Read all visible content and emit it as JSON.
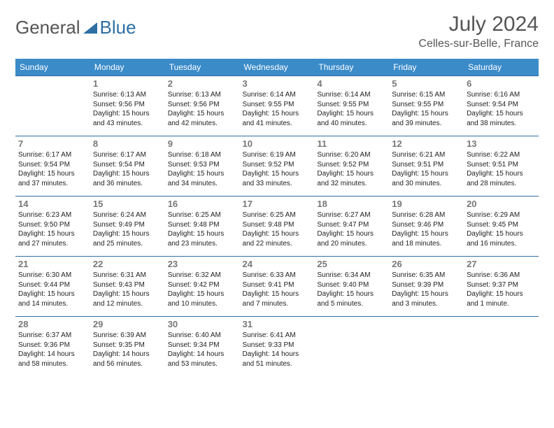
{
  "colors": {
    "header_bg": "#3b8bc9",
    "header_text": "#ffffff",
    "row_border": "#2f6fa3",
    "title_color": "#555555",
    "text_color": "#222222",
    "daynum_color": "#777777",
    "background": "#ffffff",
    "logo_accent": "#2f6fa3"
  },
  "typography": {
    "month_title_pt": 30,
    "location_pt": 16,
    "logo_pt": 26,
    "header_pt": 12,
    "daynum_pt": 13,
    "body_pt": 10
  },
  "logo": {
    "part1": "General",
    "part2": "Blue"
  },
  "title": "July 2024",
  "location": "Celles-sur-Belle, France",
  "weekdays": [
    "Sunday",
    "Monday",
    "Tuesday",
    "Wednesday",
    "Thursday",
    "Friday",
    "Saturday"
  ],
  "calendar": {
    "type": "table",
    "columns": 7,
    "rows": 5,
    "start_offset": 1,
    "days_in_month": 31
  },
  "days": [
    {
      "n": 1,
      "sunrise": "6:13 AM",
      "sunset": "9:56 PM",
      "daylight": "15 hours and 43 minutes."
    },
    {
      "n": 2,
      "sunrise": "6:13 AM",
      "sunset": "9:56 PM",
      "daylight": "15 hours and 42 minutes."
    },
    {
      "n": 3,
      "sunrise": "6:14 AM",
      "sunset": "9:55 PM",
      "daylight": "15 hours and 41 minutes."
    },
    {
      "n": 4,
      "sunrise": "6:14 AM",
      "sunset": "9:55 PM",
      "daylight": "15 hours and 40 minutes."
    },
    {
      "n": 5,
      "sunrise": "6:15 AM",
      "sunset": "9:55 PM",
      "daylight": "15 hours and 39 minutes."
    },
    {
      "n": 6,
      "sunrise": "6:16 AM",
      "sunset": "9:54 PM",
      "daylight": "15 hours and 38 minutes."
    },
    {
      "n": 7,
      "sunrise": "6:17 AM",
      "sunset": "9:54 PM",
      "daylight": "15 hours and 37 minutes."
    },
    {
      "n": 8,
      "sunrise": "6:17 AM",
      "sunset": "9:54 PM",
      "daylight": "15 hours and 36 minutes."
    },
    {
      "n": 9,
      "sunrise": "6:18 AM",
      "sunset": "9:53 PM",
      "daylight": "15 hours and 34 minutes."
    },
    {
      "n": 10,
      "sunrise": "6:19 AM",
      "sunset": "9:52 PM",
      "daylight": "15 hours and 33 minutes."
    },
    {
      "n": 11,
      "sunrise": "6:20 AM",
      "sunset": "9:52 PM",
      "daylight": "15 hours and 32 minutes."
    },
    {
      "n": 12,
      "sunrise": "6:21 AM",
      "sunset": "9:51 PM",
      "daylight": "15 hours and 30 minutes."
    },
    {
      "n": 13,
      "sunrise": "6:22 AM",
      "sunset": "9:51 PM",
      "daylight": "15 hours and 28 minutes."
    },
    {
      "n": 14,
      "sunrise": "6:23 AM",
      "sunset": "9:50 PM",
      "daylight": "15 hours and 27 minutes."
    },
    {
      "n": 15,
      "sunrise": "6:24 AM",
      "sunset": "9:49 PM",
      "daylight": "15 hours and 25 minutes."
    },
    {
      "n": 16,
      "sunrise": "6:25 AM",
      "sunset": "9:48 PM",
      "daylight": "15 hours and 23 minutes."
    },
    {
      "n": 17,
      "sunrise": "6:25 AM",
      "sunset": "9:48 PM",
      "daylight": "15 hours and 22 minutes."
    },
    {
      "n": 18,
      "sunrise": "6:27 AM",
      "sunset": "9:47 PM",
      "daylight": "15 hours and 20 minutes."
    },
    {
      "n": 19,
      "sunrise": "6:28 AM",
      "sunset": "9:46 PM",
      "daylight": "15 hours and 18 minutes."
    },
    {
      "n": 20,
      "sunrise": "6:29 AM",
      "sunset": "9:45 PM",
      "daylight": "15 hours and 16 minutes."
    },
    {
      "n": 21,
      "sunrise": "6:30 AM",
      "sunset": "9:44 PM",
      "daylight": "15 hours and 14 minutes."
    },
    {
      "n": 22,
      "sunrise": "6:31 AM",
      "sunset": "9:43 PM",
      "daylight": "15 hours and 12 minutes."
    },
    {
      "n": 23,
      "sunrise": "6:32 AM",
      "sunset": "9:42 PM",
      "daylight": "15 hours and 10 minutes."
    },
    {
      "n": 24,
      "sunrise": "6:33 AM",
      "sunset": "9:41 PM",
      "daylight": "15 hours and 7 minutes."
    },
    {
      "n": 25,
      "sunrise": "6:34 AM",
      "sunset": "9:40 PM",
      "daylight": "15 hours and 5 minutes."
    },
    {
      "n": 26,
      "sunrise": "6:35 AM",
      "sunset": "9:39 PM",
      "daylight": "15 hours and 3 minutes."
    },
    {
      "n": 27,
      "sunrise": "6:36 AM",
      "sunset": "9:37 PM",
      "daylight": "15 hours and 1 minute."
    },
    {
      "n": 28,
      "sunrise": "6:37 AM",
      "sunset": "9:36 PM",
      "daylight": "14 hours and 58 minutes."
    },
    {
      "n": 29,
      "sunrise": "6:39 AM",
      "sunset": "9:35 PM",
      "daylight": "14 hours and 56 minutes."
    },
    {
      "n": 30,
      "sunrise": "6:40 AM",
      "sunset": "9:34 PM",
      "daylight": "14 hours and 53 minutes."
    },
    {
      "n": 31,
      "sunrise": "6:41 AM",
      "sunset": "9:33 PM",
      "daylight": "14 hours and 51 minutes."
    }
  ],
  "labels": {
    "sunrise_prefix": "Sunrise: ",
    "sunset_prefix": "Sunset: ",
    "daylight_prefix": "Daylight: "
  }
}
